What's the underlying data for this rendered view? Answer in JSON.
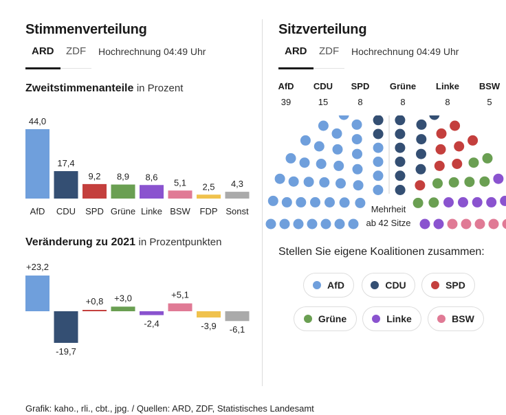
{
  "left": {
    "title": "Stimmenverteilung",
    "tabs": [
      {
        "label": "ARD",
        "active": true
      },
      {
        "label": "ZDF",
        "active": false
      }
    ],
    "note": "Hochrechnung 04:49 Uhr",
    "chart1_title": "Zweitstimmenanteile",
    "chart1_unit": "in Prozent",
    "chart2_title": "Veränderung zu 2021",
    "chart2_unit": "in Prozentpunkten"
  },
  "right": {
    "title": "Sitzverteilung",
    "tabs": [
      {
        "label": "ARD",
        "active": true
      },
      {
        "label": "ZDF",
        "active": false
      }
    ],
    "note": "Hochrechnung 04:49 Uhr",
    "majority_line1": "Mehrheit",
    "majority_line2": "ab 42 Sitze",
    "coalition_heading": "Stellen Sie eigene Koalitionen zusammen:"
  },
  "source": "Grafik: kaho., rli., cbt., jpg. / Quellen: ARD, ZDF, Statistisches Landesamt",
  "colors": {
    "AfD": "#6f9fdc",
    "CDU": "#344f73",
    "SPD": "#c43f3d",
    "Grüne": "#6a9f52",
    "Linke": "#8a53cf",
    "BSW": "#e07a95",
    "FDP": "#f0c24d",
    "Sonst": "#aaaaaa"
  },
  "chart_data": [
    {
      "type": "bar",
      "title": "Zweitstimmenanteile",
      "subtitle": "in Prozent",
      "categories": [
        "AfD",
        "CDU",
        "SPD",
        "Grüne",
        "Linke",
        "BSW",
        "FDP",
        "Sonst"
      ],
      "values": [
        44.0,
        17.4,
        9.2,
        8.9,
        8.6,
        5.1,
        2.5,
        4.3
      ],
      "value_labels": [
        "44,0",
        "17,4",
        "9,2",
        "8,9",
        "8,6",
        "5,1",
        "2,5",
        "4,3"
      ],
      "ylim": [
        0,
        44
      ]
    },
    {
      "type": "bar",
      "title": "Veränderung zu 2021",
      "subtitle": "in Prozentpunkten",
      "categories": [
        "AfD",
        "CDU",
        "SPD",
        "Grüne",
        "Linke",
        "BSW",
        "FDP",
        "Sonst"
      ],
      "values": [
        23.2,
        -19.7,
        0.8,
        3.0,
        -2.4,
        5.1,
        -3.9,
        -6.1
      ],
      "value_labels": [
        "+23,2",
        "-19,7",
        "+0,8",
        "+3,0",
        "-2,4",
        "+5,1",
        "-3,9",
        "-6,1"
      ],
      "ylim": [
        -19.7,
        23.2
      ]
    }
  ],
  "seats": [
    {
      "party": "AfD",
      "seats": 39
    },
    {
      "party": "CDU",
      "seats": 15
    },
    {
      "party": "SPD",
      "seats": 8
    },
    {
      "party": "Grüne",
      "seats": 8
    },
    {
      "party": "Linke",
      "seats": 8
    },
    {
      "party": "BSW",
      "seats": 5
    }
  ],
  "coalition_buttons": [
    {
      "label": "AfD",
      "party": "AfD"
    },
    {
      "label": "CDU",
      "party": "CDU"
    },
    {
      "label": "SPD",
      "party": "SPD"
    },
    {
      "label": "Grüne",
      "party": "Grüne"
    },
    {
      "label": "Linke",
      "party": "Linke"
    },
    {
      "label": "BSW",
      "party": "BSW"
    }
  ]
}
